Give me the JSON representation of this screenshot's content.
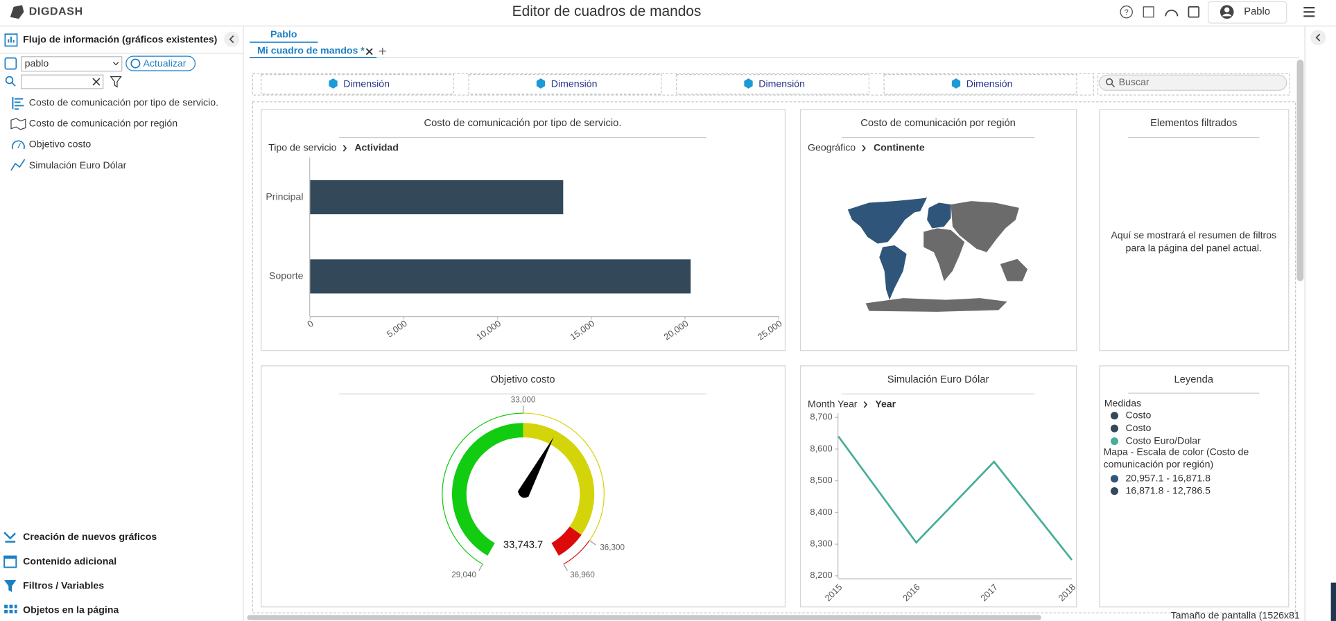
{
  "header": {
    "logo": "DIGDASH",
    "title": "Editor de cuadros de mandos",
    "user": "Pablo"
  },
  "sidebar": {
    "title": "Flujo de información (gráficos existentes)",
    "flow_select": "pablo",
    "refresh_button": "Actualizar",
    "items": [
      "Costo de comunicación por tipo de servicio.",
      "Costo de comunicación por región",
      "Objetivo costo",
      "Simulación Euro Dólar"
    ],
    "sections": [
      "Creación de nuevos gráficos",
      "Contenido adicional",
      "Filtros / Variables",
      "Objetos en la página"
    ]
  },
  "tabs": {
    "group": "Pablo",
    "dashboard": "Mi cuadro de mandos *"
  },
  "dimension_filters": [
    "Dimensión",
    "Dimensión",
    "Dimensión",
    "Dimensión"
  ],
  "search_placeholder": "Buscar",
  "chart_data": [
    {
      "type": "bar",
      "orientation": "horizontal",
      "title": "Costo de comunicación por tipo de servicio.",
      "drill_path": [
        "Tipo de servicio",
        "Actividad"
      ],
      "categories": [
        "Principal",
        "Soporte"
      ],
      "values": [
        13500,
        20300
      ],
      "color": "#33495a",
      "xlim": [
        0,
        25000
      ],
      "xticks": [
        0,
        {
          "value": 5000,
          "label": "5,000"
        },
        {
          "value": 10000,
          "label": "10,000"
        },
        {
          "value": 15000,
          "label": "15,000"
        },
        {
          "value": 20000,
          "label": "20,000"
        },
        {
          "value": 25000,
          "label": "25,000"
        }
      ]
    },
    {
      "type": "map",
      "title": "Costo de comunicación por región",
      "drill_path": [
        "Geográfico",
        "Continente"
      ]
    },
    {
      "type": "gauge",
      "title": "Objetivo costo",
      "range": [
        29040,
        36960
      ],
      "ticks": [
        {
          "value": 29040,
          "label": "29,040"
        },
        {
          "value": 33000,
          "label": "33,000"
        },
        {
          "value": 36300,
          "label": "36,300"
        },
        {
          "value": 36960,
          "label": "36,960"
        }
      ],
      "bands": [
        {
          "from": 29040,
          "to": 33000,
          "color": "#11cc11"
        },
        {
          "from": 33000,
          "to": 36300,
          "color": "#d4d40a"
        },
        {
          "from": 36300,
          "to": 36960,
          "color": "#dd0a0a"
        }
      ],
      "values": [
        33743.7
      ],
      "value_labels": [
        "33,743.7"
      ]
    },
    {
      "type": "line",
      "title": "Simulación Euro Dólar",
      "drill_path": [
        "Month Year",
        "Year"
      ],
      "categories": [
        "2015",
        "2016",
        "2017",
        "2018"
      ],
      "values": [
        8640,
        8305,
        8560,
        8250
      ],
      "color": "#45ad98",
      "ylim": [
        8200,
        8700
      ],
      "yticks": [
        {
          "value": 8200,
          "label": "8,200"
        },
        {
          "value": 8300,
          "label": "8,300"
        },
        {
          "value": 8400,
          "label": "8,400"
        },
        {
          "value": 8500,
          "label": "8,500"
        },
        {
          "value": 8600,
          "label": "8,600"
        },
        {
          "value": 8700,
          "label": "8,700"
        }
      ]
    }
  ],
  "filter_panel": {
    "title": "Elementos filtrados",
    "message": "Aquí se mostrará el resumen de filtros para la página del panel actual."
  },
  "legend": {
    "title": "Leyenda",
    "measures_heading": "Medidas",
    "measures": [
      {
        "name": "Costo",
        "color": "#33495a"
      },
      {
        "name": "Costo",
        "color": "#33495a"
      },
      {
        "name": "Costo Euro/Dolar",
        "color": "#45ad98"
      }
    ],
    "map_scale_heading": "Mapa - Escala de color (Costo de comunicación por región)",
    "map_scale": [
      {
        "label": "20,957.1 - 16,871.8",
        "color": "#2f557a"
      },
      {
        "label": "16,871.8 - 12,786.5",
        "color": "#33495a"
      }
    ]
  },
  "footer_text": "Tamaño de pantalla (1526x81"
}
